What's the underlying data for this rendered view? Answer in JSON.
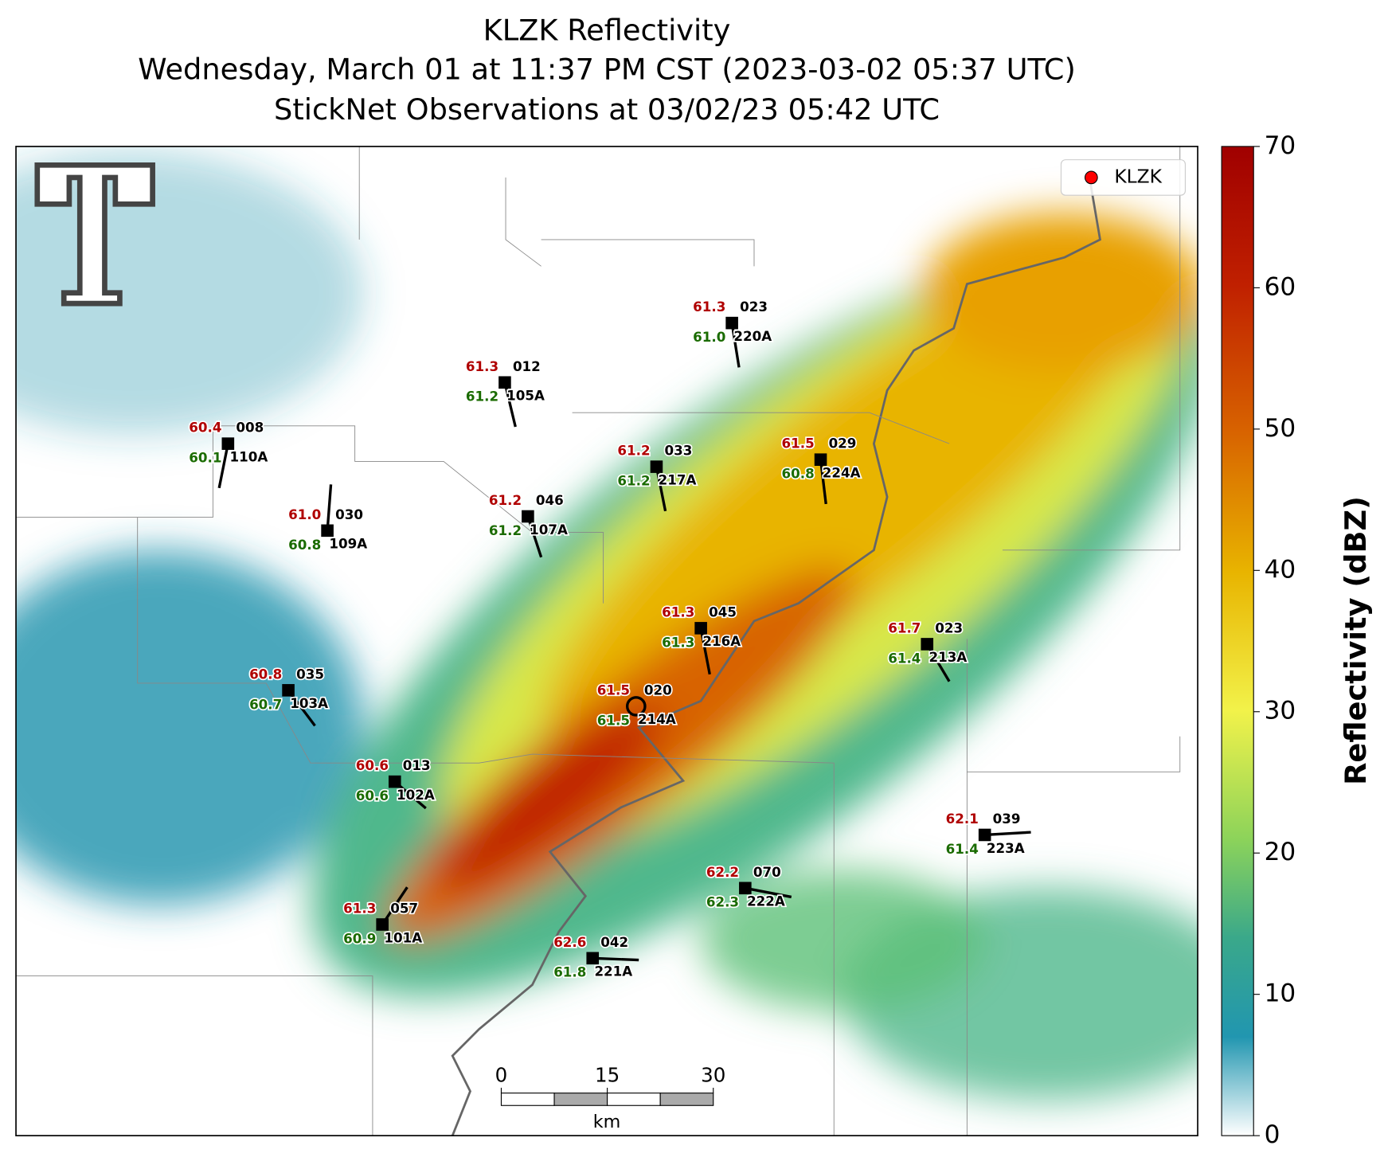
{
  "header": {
    "title": "KLZK Reflectivity",
    "subtitle": "Wednesday, March 01 at 11:37 PM CST (2023-03-02 05:37 UTC)",
    "subtitle2": "StickNet Observations at 03/02/23 05:42 UTC"
  },
  "legend": {
    "label": "KLZK",
    "color": "#ff0000"
  },
  "colorbar": {
    "label": "Reflectivity (dBZ)",
    "lim": [
      0,
      70
    ],
    "ticks": [
      0,
      10,
      20,
      30,
      40,
      50,
      60,
      70
    ]
  },
  "scalebar": {
    "ticks": [
      0,
      15,
      30
    ],
    "unit": "km"
  },
  "stations": [
    {
      "temp": "60.4",
      "id": "008",
      "dew": "60.1",
      "code": "110A"
    },
    {
      "temp": "61.3",
      "id": "012",
      "dew": "61.2",
      "code": "105A"
    },
    {
      "temp": "61.3",
      "id": "023",
      "dew": "61.0",
      "code": "220A"
    },
    {
      "temp": "61.2",
      "id": "033",
      "dew": "61.2",
      "code": "217A"
    },
    {
      "temp": "61.5",
      "id": "029",
      "dew": "60.8",
      "code": "224A"
    },
    {
      "temp": "61.0",
      "id": "030",
      "dew": "60.8",
      "code": "109A"
    },
    {
      "temp": "61.2",
      "id": "046",
      "dew": "61.2",
      "code": "107A"
    },
    {
      "temp": "61.3",
      "id": "045",
      "dew": "61.3",
      "code": "216A"
    },
    {
      "temp": "61.7",
      "id": "023",
      "dew": "61.4",
      "code": "213A"
    },
    {
      "temp": "60.8",
      "id": "035",
      "dew": "60.7",
      "code": "103A"
    },
    {
      "temp": "61.5",
      "id": "020",
      "dew": "61.5",
      "code": "214A"
    },
    {
      "temp": "60.6",
      "id": "013",
      "dew": "60.6",
      "code": "102A"
    },
    {
      "temp": "62.1",
      "id": "039",
      "dew": "61.4",
      "code": "223A"
    },
    {
      "temp": "62.2",
      "id": "070",
      "dew": "62.3",
      "code": "222A"
    },
    {
      "temp": "61.3",
      "id": "057",
      "dew": "60.9",
      "code": "101A"
    },
    {
      "temp": "62.6",
      "id": "042",
      "dew": "61.8",
      "code": "221A"
    }
  ]
}
